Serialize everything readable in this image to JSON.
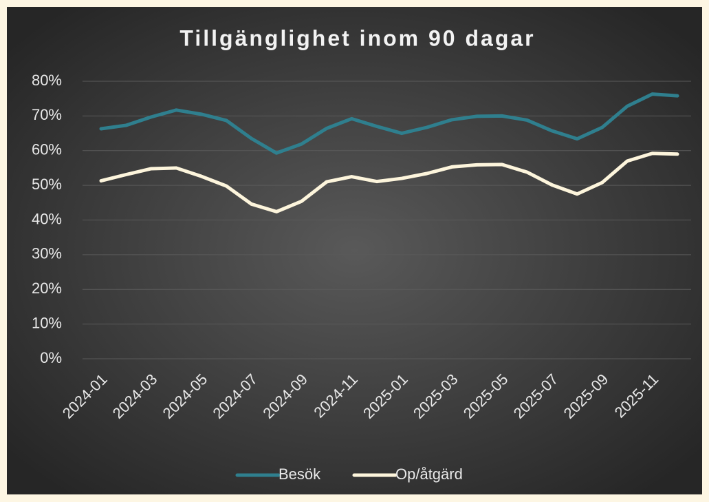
{
  "chart_data": {
    "type": "line",
    "title": "Tillgänglighet inom 90 dagar",
    "categories": [
      "2024-01",
      null,
      "2024-03",
      null,
      "2024-05",
      null,
      "2024-07",
      null,
      "2024-09",
      null,
      "2024-11",
      null,
      "2025-01",
      null,
      "2025-03",
      null,
      "2025-05",
      null,
      "2025-07",
      null,
      "2025-09",
      null,
      "2025-11",
      null
    ],
    "series": [
      {
        "name": "Besök",
        "color": "#2f7f8e",
        "values": [
          66.3,
          67.3,
          69.7,
          71.7,
          70.5,
          68.7,
          63.5,
          59.3,
          61.9,
          66.4,
          69.2,
          67,
          65,
          66.7,
          68.9,
          69.9,
          70,
          68.8,
          65.7,
          63.4,
          66.7,
          72.8,
          76.3,
          75.8
        ]
      },
      {
        "name": "Op/åtgärd",
        "color": "#fdf5dc",
        "values": [
          51.3,
          53.1,
          54.8,
          55,
          52.6,
          49.8,
          44.6,
          42.4,
          45.4,
          51,
          52.5,
          51.1,
          52,
          53.4,
          55.3,
          55.9,
          56,
          53.8,
          50.1,
          47.5,
          50.8,
          57,
          59.2,
          59
        ]
      }
    ],
    "ylim": [
      0,
      80
    ],
    "yticks": [
      {
        "value": 0,
        "label": "0%"
      },
      {
        "value": 10,
        "label": "10%"
      },
      {
        "value": 20,
        "label": "20%"
      },
      {
        "value": 30,
        "label": "30%"
      },
      {
        "value": 40,
        "label": "40%"
      },
      {
        "value": 50,
        "label": "50%"
      },
      {
        "value": 60,
        "label": "60%"
      },
      {
        "value": 70,
        "label": "70%"
      },
      {
        "value": 80,
        "label": "80%"
      }
    ],
    "grid": true,
    "legend": "bottom"
  }
}
